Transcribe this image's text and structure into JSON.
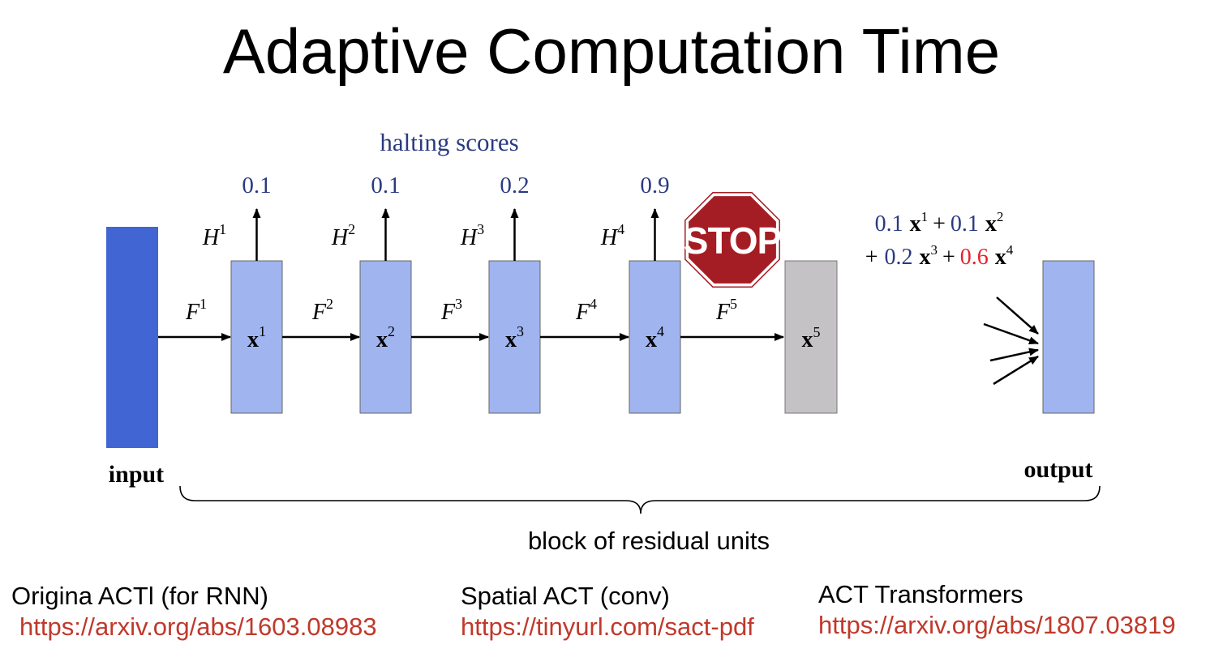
{
  "title": "Adaptive Computation Time",
  "colors": {
    "input_block": "#4166d4",
    "unit_block": "#a0b4f0",
    "halted_block": "#c4c2c4",
    "score_text": "#2a3a80",
    "highlight": "#e8202a",
    "stop_sign": "#a51d24",
    "link": "#c0392b"
  },
  "halting_label": "halting scores",
  "input_label": "input",
  "output_label": "output",
  "brace_label": "block of residual units",
  "stop_text": "STOP",
  "units": [
    {
      "x": "x",
      "x_sup": "1",
      "F": "F",
      "F_sup": "1",
      "H": "H",
      "H_sup": "1",
      "score": "0.1"
    },
    {
      "x": "x",
      "x_sup": "2",
      "F": "F",
      "F_sup": "2",
      "H": "H",
      "H_sup": "2",
      "score": "0.1"
    },
    {
      "x": "x",
      "x_sup": "3",
      "F": "F",
      "F_sup": "3",
      "H": "H",
      "H_sup": "3",
      "score": "0.2"
    },
    {
      "x": "x",
      "x_sup": "4",
      "F": "F",
      "F_sup": "4",
      "H": "H",
      "H_sup": "4",
      "score": "0.9"
    }
  ],
  "halted_unit": {
    "x": "x",
    "x_sup": "5",
    "F": "F",
    "F_sup": "5"
  },
  "formula": {
    "line1": [
      {
        "coef": "0.1",
        "x": "x",
        "sup": "1",
        "sep": "+"
      },
      {
        "coef": "0.1",
        "x": "x",
        "sup": "2",
        "sep": ""
      }
    ],
    "line2": [
      {
        "coef": "0.2",
        "x": "x",
        "sup": "3",
        "sep": "+",
        "lead": "+"
      },
      {
        "coef": "0.6",
        "x": "x",
        "sup": "4",
        "sep": "",
        "highlight": true
      }
    ]
  },
  "references": [
    {
      "label": "Origina ACTl (for RNN)",
      "url": "https://arxiv.org/abs/1603.08983"
    },
    {
      "label": "Spatial ACT (conv)",
      "url": "https://tinyurl.com/sact-pdf"
    },
    {
      "label": "ACT Transformers",
      "url": "https://arxiv.org/abs/1807.03819"
    }
  ]
}
